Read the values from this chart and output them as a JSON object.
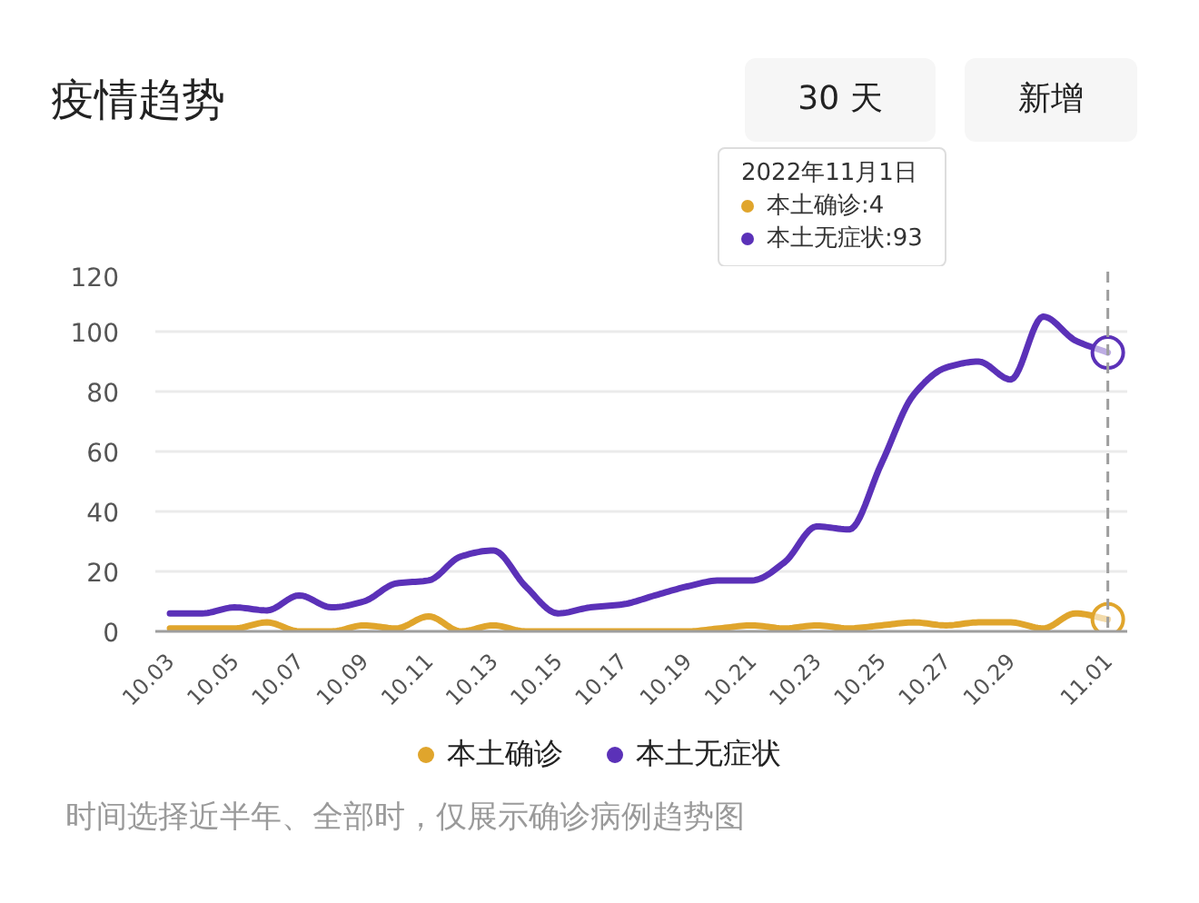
{
  "chart_data": {
    "type": "line",
    "title": "疫情趋势",
    "categories": [
      "10.03",
      null,
      "10.05",
      null,
      "10.07",
      null,
      "10.09",
      null,
      "10.11",
      null,
      "10.13",
      null,
      "10.15",
      null,
      "10.17",
      null,
      "10.19",
      null,
      "10.21",
      null,
      "10.23",
      null,
      "10.25",
      null,
      "10.27",
      null,
      "10.29",
      null,
      null,
      "11.01"
    ],
    "series": [
      {
        "name": "本土确诊",
        "color": "#e0a52c",
        "values": [
          1,
          1,
          1,
          3,
          0,
          0,
          2,
          1,
          5,
          0,
          2,
          0,
          0,
          0,
          0,
          0,
          0,
          1,
          2,
          1,
          2,
          1,
          2,
          3,
          2,
          3,
          3,
          1,
          6,
          4
        ]
      },
      {
        "name": "本土无症状",
        "color": "#5b31b8",
        "values": [
          6,
          6,
          8,
          7,
          12,
          8,
          10,
          16,
          17,
          25,
          27,
          15,
          6,
          8,
          9,
          12,
          15,
          17,
          17,
          23,
          35,
          34,
          56,
          79,
          88,
          90,
          84,
          105,
          97,
          93
        ]
      }
    ],
    "ylim": [
      0,
      120
    ],
    "yticks": [
      0,
      20,
      40,
      60,
      80,
      100,
      120
    ],
    "grid": "y",
    "legend": "bottom",
    "ref_lines": [
      {
        "axis": "x",
        "value": "11.01",
        "color": "#9e9e9e",
        "line_style": "dashed"
      }
    ],
    "annotations": [
      "30 天",
      "新增",
      "2022年11月1日",
      "本土确诊:4",
      "本土无症状:93",
      "时间选择近半年、全部时，仅展示确诊病例趋势图"
    ]
  }
}
